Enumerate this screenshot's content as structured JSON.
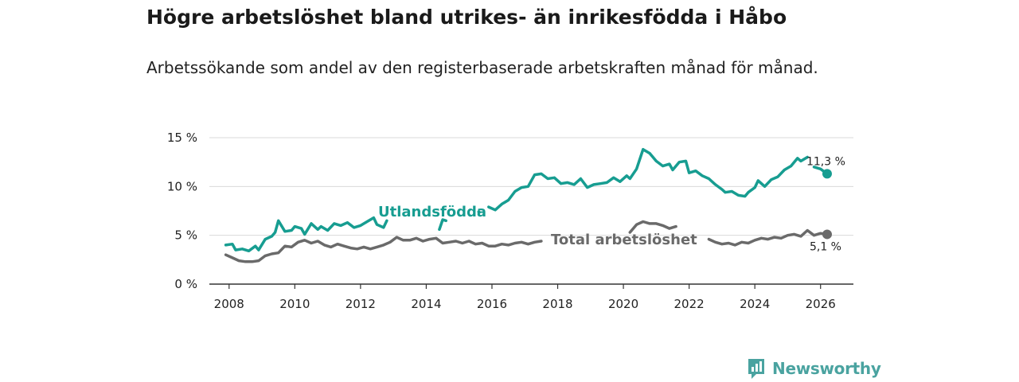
{
  "title": "Högre arbetslöshet bland utrikes- än inrikesfödda i Håbo",
  "subtitle": "Arbetssökande som andel av den registerbaserade arbetskraften månad för månad.",
  "brand": {
    "name": "Newsworthy"
  },
  "colors": {
    "foreign": "#179d91",
    "total": "#6a6a6a",
    "grid": "#d9d9d9",
    "axis": "#333333"
  },
  "chart_data": {
    "type": "line",
    "title": "Högre arbetslöshet bland utrikes- än inrikesfödda i Håbo",
    "xlabel": "",
    "ylabel": "",
    "xlim": [
      2007.4,
      2027.0
    ],
    "ylim": [
      0,
      15
    ],
    "y_ticks": [
      0,
      5,
      10,
      15
    ],
    "y_tick_labels": [
      "0 %",
      "5 %",
      "10 %",
      "15 %"
    ],
    "x_ticks": [
      2008,
      2010,
      2012,
      2014,
      2016,
      2018,
      2020,
      2022,
      2024,
      2026
    ],
    "x_tick_labels": [
      "2008",
      "2010",
      "2012",
      "2014",
      "2016",
      "2018",
      "2020",
      "2022",
      "2024",
      "2026"
    ],
    "grid": true,
    "series": [
      {
        "name": "Utlandsfödda",
        "end_label": "11,3 %",
        "segments": [
          [
            [
              2007.9,
              4.0
            ],
            [
              2008.1,
              4.1
            ],
            [
              2008.2,
              3.5
            ],
            [
              2008.4,
              3.6
            ],
            [
              2008.6,
              3.4
            ],
            [
              2008.8,
              3.9
            ],
            [
              2008.9,
              3.5
            ],
            [
              2009.1,
              4.6
            ],
            [
              2009.3,
              4.9
            ],
            [
              2009.4,
              5.3
            ],
            [
              2009.5,
              6.5
            ],
            [
              2009.7,
              5.4
            ],
            [
              2009.9,
              5.5
            ],
            [
              2010.0,
              5.9
            ],
            [
              2010.2,
              5.7
            ],
            [
              2010.3,
              5.1
            ],
            [
              2010.5,
              6.2
            ],
            [
              2010.7,
              5.6
            ],
            [
              2010.8,
              5.9
            ],
            [
              2011.0,
              5.5
            ],
            [
              2011.2,
              6.2
            ],
            [
              2011.4,
              6.0
            ],
            [
              2011.6,
              6.3
            ],
            [
              2011.8,
              5.8
            ],
            [
              2012.0,
              6.0
            ],
            [
              2012.2,
              6.4
            ],
            [
              2012.4,
              6.8
            ],
            [
              2012.5,
              6.1
            ],
            [
              2012.7,
              5.8
            ],
            [
              2012.8,
              6.5
            ]
          ],
          [
            [
              2014.4,
              5.6
            ],
            [
              2014.5,
              6.6
            ],
            [
              2014.6,
              6.5
            ]
          ],
          [
            [
              2015.6,
              7.4
            ]
          ],
          [
            [
              2015.9,
              7.9
            ],
            [
              2016.1,
              7.6
            ],
            [
              2016.3,
              8.2
            ],
            [
              2016.5,
              8.6
            ],
            [
              2016.7,
              9.5
            ],
            [
              2016.9,
              9.9
            ],
            [
              2017.1,
              10.0
            ],
            [
              2017.3,
              11.2
            ],
            [
              2017.5,
              11.3
            ],
            [
              2017.7,
              10.8
            ],
            [
              2017.9,
              10.9
            ],
            [
              2018.1,
              10.3
            ],
            [
              2018.3,
              10.4
            ],
            [
              2018.5,
              10.2
            ],
            [
              2018.7,
              10.8
            ],
            [
              2018.9,
              9.9
            ],
            [
              2019.1,
              10.2
            ],
            [
              2019.3,
              10.3
            ],
            [
              2019.5,
              10.4
            ],
            [
              2019.7,
              10.9
            ],
            [
              2019.9,
              10.5
            ],
            [
              2020.1,
              11.1
            ],
            [
              2020.2,
              10.8
            ],
            [
              2020.4,
              11.8
            ],
            [
              2020.6,
              13.8
            ],
            [
              2020.8,
              13.4
            ],
            [
              2021.0,
              12.6
            ],
            [
              2021.2,
              12.1
            ],
            [
              2021.4,
              12.3
            ],
            [
              2021.5,
              11.7
            ],
            [
              2021.7,
              12.5
            ],
            [
              2021.9,
              12.6
            ],
            [
              2022.0,
              11.4
            ],
            [
              2022.2,
              11.6
            ],
            [
              2022.4,
              11.1
            ],
            [
              2022.6,
              10.8
            ],
            [
              2022.8,
              10.2
            ],
            [
              2023.0,
              9.7
            ],
            [
              2023.1,
              9.4
            ],
            [
              2023.3,
              9.5
            ],
            [
              2023.5,
              9.1
            ],
            [
              2023.7,
              9.0
            ],
            [
              2023.8,
              9.4
            ],
            [
              2024.0,
              9.9
            ],
            [
              2024.1,
              10.6
            ],
            [
              2024.3,
              10.0
            ],
            [
              2024.5,
              10.7
            ],
            [
              2024.7,
              11.0
            ],
            [
              2024.9,
              11.7
            ],
            [
              2025.1,
              12.1
            ],
            [
              2025.3,
              12.9
            ],
            [
              2025.4,
              12.6
            ],
            [
              2025.6,
              13.0
            ]
          ],
          [
            [
              2025.8,
              12.0
            ],
            [
              2026.0,
              11.8
            ],
            [
              2026.2,
              11.3
            ]
          ]
        ]
      },
      {
        "name": "Total arbetslöshet",
        "end_label": "5,1 %",
        "segments": [
          [
            [
              2007.9,
              3.0
            ],
            [
              2008.1,
              2.7
            ],
            [
              2008.3,
              2.4
            ],
            [
              2008.5,
              2.3
            ],
            [
              2008.7,
              2.3
            ],
            [
              2008.9,
              2.4
            ],
            [
              2009.1,
              2.9
            ],
            [
              2009.3,
              3.1
            ],
            [
              2009.5,
              3.2
            ],
            [
              2009.7,
              3.9
            ],
            [
              2009.9,
              3.8
            ],
            [
              2010.1,
              4.3
            ],
            [
              2010.3,
              4.5
            ],
            [
              2010.5,
              4.2
            ],
            [
              2010.7,
              4.4
            ],
            [
              2010.9,
              4.0
            ],
            [
              2011.1,
              3.8
            ],
            [
              2011.3,
              4.1
            ],
            [
              2011.5,
              3.9
            ],
            [
              2011.7,
              3.7
            ],
            [
              2011.9,
              3.6
            ],
            [
              2012.1,
              3.8
            ],
            [
              2012.3,
              3.6
            ],
            [
              2012.5,
              3.8
            ],
            [
              2012.7,
              4.0
            ],
            [
              2012.9,
              4.3
            ],
            [
              2013.1,
              4.8
            ],
            [
              2013.3,
              4.5
            ],
            [
              2013.5,
              4.5
            ],
            [
              2013.7,
              4.7
            ],
            [
              2013.9,
              4.4
            ],
            [
              2014.1,
              4.6
            ],
            [
              2014.3,
              4.7
            ],
            [
              2014.5,
              4.2
            ],
            [
              2014.7,
              4.3
            ],
            [
              2014.9,
              4.4
            ],
            [
              2015.1,
              4.2
            ],
            [
              2015.3,
              4.4
            ],
            [
              2015.5,
              4.1
            ],
            [
              2015.7,
              4.2
            ],
            [
              2015.9,
              3.9
            ],
            [
              2016.1,
              3.9
            ],
            [
              2016.3,
              4.1
            ],
            [
              2016.5,
              4.0
            ],
            [
              2016.7,
              4.2
            ],
            [
              2016.9,
              4.3
            ],
            [
              2017.1,
              4.1
            ],
            [
              2017.3,
              4.3
            ],
            [
              2017.5,
              4.4
            ]
          ],
          [
            [
              2020.2,
              5.3
            ],
            [
              2020.4,
              6.1
            ],
            [
              2020.6,
              6.4
            ],
            [
              2020.8,
              6.2
            ],
            [
              2021.0,
              6.2
            ],
            [
              2021.2,
              6.0
            ],
            [
              2021.4,
              5.7
            ],
            [
              2021.6,
              5.9
            ]
          ],
          [
            [
              2022.6,
              4.6
            ],
            [
              2022.8,
              4.3
            ],
            [
              2023.0,
              4.1
            ],
            [
              2023.2,
              4.2
            ],
            [
              2023.4,
              4.0
            ],
            [
              2023.6,
              4.3
            ],
            [
              2023.8,
              4.2
            ],
            [
              2024.0,
              4.5
            ],
            [
              2024.2,
              4.7
            ],
            [
              2024.4,
              4.6
            ],
            [
              2024.6,
              4.8
            ],
            [
              2024.8,
              4.7
            ],
            [
              2025.0,
              5.0
            ],
            [
              2025.2,
              5.1
            ],
            [
              2025.4,
              4.9
            ],
            [
              2025.6,
              5.5
            ],
            [
              2025.8,
              5.0
            ],
            [
              2026.0,
              5.2
            ],
            [
              2026.2,
              5.1
            ]
          ]
        ]
      }
    ],
    "inline_labels": [
      {
        "series": "Utlandsfödda",
        "text": "Utlandsfödda"
      },
      {
        "series": "Total arbetslöshet",
        "text": "Total arbetslöshet"
      }
    ]
  }
}
